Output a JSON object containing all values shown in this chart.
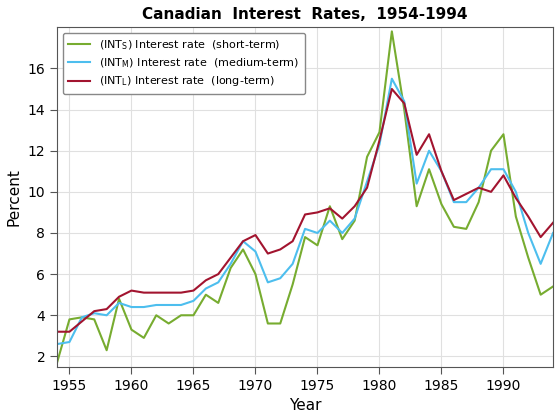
{
  "title": "Canadian  Interest  Rates,  1954-1994",
  "xlabel": "Year",
  "ylabel": "Percent",
  "years": [
    1954,
    1955,
    1956,
    1957,
    1958,
    1959,
    1960,
    1961,
    1962,
    1963,
    1964,
    1965,
    1966,
    1967,
    1968,
    1969,
    1970,
    1971,
    1972,
    1973,
    1974,
    1975,
    1976,
    1977,
    1978,
    1979,
    1980,
    1981,
    1982,
    1983,
    1984,
    1985,
    1986,
    1987,
    1988,
    1989,
    1990,
    1991,
    1992,
    1993,
    1994
  ],
  "INT_S": [
    1.7,
    3.8,
    3.9,
    3.8,
    2.3,
    4.8,
    3.3,
    2.9,
    4.0,
    3.6,
    4.0,
    4.0,
    5.0,
    4.6,
    6.3,
    7.2,
    6.0,
    3.6,
    3.6,
    5.5,
    7.8,
    7.4,
    9.3,
    7.7,
    8.6,
    11.7,
    12.9,
    17.8,
    14.0,
    9.3,
    11.1,
    9.4,
    8.3,
    8.2,
    9.5,
    12.0,
    12.8,
    8.8,
    6.8,
    5.0,
    5.4
  ],
  "INT_M": [
    2.6,
    2.7,
    3.9,
    4.1,
    4.0,
    4.6,
    4.4,
    4.4,
    4.5,
    4.5,
    4.5,
    4.7,
    5.3,
    5.6,
    6.5,
    7.6,
    7.1,
    5.6,
    5.8,
    6.5,
    8.2,
    8.0,
    8.6,
    8.0,
    8.7,
    10.5,
    12.3,
    15.5,
    14.4,
    10.4,
    12.0,
    11.0,
    9.5,
    9.5,
    10.2,
    11.1,
    11.1,
    10.0,
    8.0,
    6.5,
    8.0
  ],
  "INT_L": [
    3.2,
    3.2,
    3.7,
    4.2,
    4.3,
    4.9,
    5.2,
    5.1,
    5.1,
    5.1,
    5.1,
    5.2,
    5.7,
    6.0,
    6.8,
    7.6,
    7.9,
    7.0,
    7.2,
    7.6,
    8.9,
    9.0,
    9.2,
    8.7,
    9.3,
    10.2,
    12.5,
    15.0,
    14.3,
    11.8,
    12.8,
    11.0,
    9.6,
    9.9,
    10.2,
    10.0,
    10.8,
    9.7,
    8.8,
    7.8,
    8.5
  ],
  "color_S": "#77ac30",
  "color_M": "#4dbeee",
  "color_L": "#a2142f",
  "linewidth": 1.5,
  "xlim": [
    1954,
    1994
  ],
  "ylim": [
    1.5,
    18.0
  ],
  "yticks": [
    2,
    4,
    6,
    8,
    10,
    12,
    14,
    16
  ],
  "xticks": [
    1955,
    1960,
    1965,
    1970,
    1975,
    1980,
    1985,
    1990
  ],
  "fig_bg": "#ffffff",
  "ax_bg": "#ffffff",
  "grid_color": "#e0e0e0"
}
